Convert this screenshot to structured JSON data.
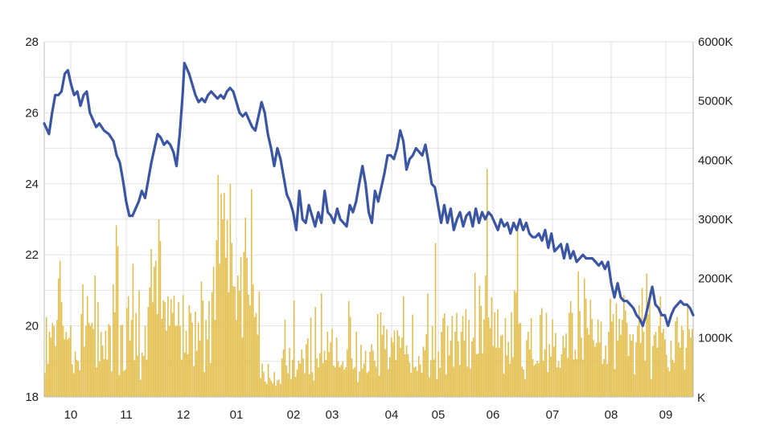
{
  "chart_data": {
    "type": "line",
    "combo": "price line with volume bars",
    "grid": true,
    "colors": {
      "price_line": "#3a55a4",
      "volume_bars": "#e3be4a",
      "grid": "#e3e3e3",
      "axis": "#bbbbbb"
    },
    "x_ticks": [
      "10",
      "11",
      "12",
      "01",
      "02",
      "03",
      "04",
      "05",
      "06",
      "07",
      "08",
      "09"
    ],
    "left_axis": {
      "ylim": [
        18,
        28
      ],
      "ticks": [
        "18",
        "20",
        "22",
        "24",
        "26",
        "28"
      ]
    },
    "right_axis": {
      "unit": "K",
      "ylim": [
        0,
        6000
      ],
      "ticks": [
        "6000K",
        "5000K",
        "4000K",
        "3000K",
        "2000K",
        "1000K"
      ]
    },
    "series": [
      {
        "kind": "line",
        "axis": "left",
        "points": [
          [
            0,
            25.7
          ],
          [
            3,
            25.4
          ],
          [
            5,
            26.0
          ],
          [
            7,
            26.5
          ],
          [
            9,
            26.5
          ],
          [
            11,
            26.6
          ],
          [
            13,
            27.1
          ],
          [
            15,
            27.2
          ],
          [
            17,
            26.8
          ],
          [
            19,
            26.5
          ],
          [
            21,
            26.6
          ],
          [
            23,
            26.2
          ],
          [
            25,
            26.5
          ],
          [
            27,
            26.6
          ],
          [
            29,
            26.0
          ],
          [
            31,
            25.8
          ],
          [
            33,
            25.6
          ],
          [
            35,
            25.7
          ],
          [
            38,
            25.5
          ],
          [
            41,
            25.4
          ],
          [
            44,
            25.2
          ],
          [
            46,
            24.8
          ],
          [
            48,
            24.6
          ],
          [
            50,
            24.1
          ],
          [
            52,
            23.5
          ],
          [
            54,
            23.1
          ],
          [
            56,
            23.1
          ],
          [
            58,
            23.3
          ],
          [
            60,
            23.5
          ],
          [
            62,
            23.8
          ],
          [
            64,
            23.6
          ],
          [
            66,
            24.1
          ],
          [
            68,
            24.6
          ],
          [
            70,
            25.0
          ],
          [
            72,
            25.4
          ],
          [
            74,
            25.3
          ],
          [
            76,
            25.1
          ],
          [
            78,
            25.2
          ],
          [
            80,
            25.1
          ],
          [
            82,
            24.9
          ],
          [
            84,
            24.5
          ],
          [
            86,
            25.4
          ],
          [
            88,
            26.6
          ],
          [
            89,
            27.4
          ],
          [
            90,
            27.3
          ],
          [
            92,
            27.1
          ],
          [
            94,
            26.8
          ],
          [
            96,
            26.5
          ],
          [
            98,
            26.3
          ],
          [
            100,
            26.4
          ],
          [
            102,
            26.3
          ],
          [
            104,
            26.5
          ],
          [
            106,
            26.6
          ],
          [
            108,
            26.5
          ],
          [
            110,
            26.4
          ],
          [
            112,
            26.5
          ],
          [
            114,
            26.4
          ],
          [
            116,
            26.6
          ],
          [
            118,
            26.7
          ],
          [
            120,
            26.6
          ],
          [
            122,
            26.3
          ],
          [
            124,
            26.0
          ],
          [
            126,
            25.9
          ],
          [
            128,
            26.0
          ],
          [
            130,
            25.8
          ],
          [
            132,
            25.6
          ],
          [
            134,
            25.5
          ],
          [
            136,
            25.9
          ],
          [
            138,
            26.3
          ],
          [
            140,
            26.0
          ],
          [
            142,
            25.4
          ],
          [
            144,
            25.0
          ],
          [
            146,
            24.5
          ],
          [
            148,
            25.0
          ],
          [
            150,
            24.7
          ],
          [
            152,
            24.2
          ],
          [
            154,
            23.7
          ],
          [
            156,
            23.5
          ],
          [
            158,
            23.2
          ],
          [
            160,
            22.7
          ],
          [
            162,
            23.8
          ],
          [
            164,
            23.0
          ],
          [
            166,
            22.9
          ],
          [
            168,
            23.4
          ],
          [
            170,
            23.1
          ],
          [
            172,
            22.8
          ],
          [
            174,
            23.2
          ],
          [
            176,
            22.9
          ],
          [
            178,
            23.8
          ],
          [
            180,
            23.2
          ],
          [
            182,
            23.1
          ],
          [
            184,
            22.9
          ],
          [
            186,
            23.3
          ],
          [
            188,
            23.0
          ],
          [
            190,
            22.9
          ],
          [
            192,
            22.8
          ],
          [
            194,
            23.4
          ],
          [
            196,
            23.2
          ],
          [
            198,
            23.5
          ],
          [
            200,
            24.0
          ],
          [
            202,
            24.5
          ],
          [
            204,
            24.0
          ],
          [
            206,
            23.2
          ],
          [
            208,
            22.9
          ],
          [
            210,
            23.8
          ],
          [
            212,
            23.5
          ],
          [
            214,
            23.9
          ],
          [
            216,
            24.3
          ],
          [
            218,
            24.8
          ],
          [
            220,
            24.8
          ],
          [
            222,
            24.7
          ],
          [
            224,
            25.0
          ],
          [
            226,
            25.5
          ],
          [
            228,
            25.2
          ],
          [
            230,
            24.4
          ],
          [
            232,
            24.7
          ],
          [
            234,
            24.8
          ],
          [
            236,
            25.0
          ],
          [
            238,
            24.9
          ],
          [
            240,
            24.8
          ],
          [
            242,
            25.1
          ],
          [
            244,
            24.6
          ],
          [
            246,
            24.0
          ],
          [
            248,
            23.9
          ],
          [
            250,
            23.4
          ],
          [
            252,
            22.9
          ],
          [
            254,
            23.4
          ],
          [
            256,
            22.9
          ],
          [
            258,
            23.3
          ],
          [
            260,
            22.7
          ],
          [
            262,
            23.0
          ],
          [
            264,
            23.2
          ],
          [
            266,
            22.8
          ],
          [
            268,
            23.1
          ],
          [
            270,
            23.2
          ],
          [
            272,
            22.8
          ],
          [
            274,
            23.3
          ],
          [
            276,
            22.9
          ],
          [
            278,
            23.2
          ],
          [
            280,
            23.0
          ],
          [
            282,
            23.2
          ],
          [
            284,
            23.1
          ],
          [
            286,
            22.9
          ],
          [
            288,
            22.7
          ],
          [
            290,
            23.0
          ],
          [
            292,
            22.8
          ],
          [
            294,
            22.9
          ],
          [
            296,
            22.6
          ],
          [
            298,
            22.9
          ],
          [
            300,
            22.7
          ],
          [
            302,
            23.0
          ],
          [
            304,
            22.7
          ],
          [
            306,
            22.9
          ],
          [
            308,
            22.6
          ],
          [
            310,
            22.5
          ],
          [
            312,
            22.5
          ],
          [
            314,
            22.6
          ],
          [
            316,
            22.4
          ],
          [
            318,
            22.7
          ],
          [
            320,
            22.2
          ],
          [
            322,
            22.6
          ],
          [
            324,
            22.1
          ],
          [
            326,
            22.2
          ],
          [
            328,
            22.3
          ],
          [
            330,
            21.9
          ],
          [
            332,
            22.3
          ],
          [
            334,
            21.9
          ],
          [
            336,
            22.1
          ],
          [
            338,
            21.8
          ],
          [
            340,
            21.9
          ],
          [
            342,
            22.0
          ],
          [
            344,
            21.9
          ],
          [
            346,
            21.9
          ],
          [
            348,
            21.9
          ],
          [
            350,
            21.8
          ],
          [
            352,
            21.7
          ],
          [
            354,
            21.8
          ],
          [
            356,
            21.6
          ],
          [
            358,
            21.8
          ],
          [
            360,
            21.2
          ],
          [
            362,
            20.8
          ],
          [
            364,
            21.2
          ],
          [
            366,
            20.8
          ],
          [
            368,
            20.7
          ],
          [
            370,
            20.7
          ],
          [
            372,
            20.6
          ],
          [
            374,
            20.5
          ],
          [
            376,
            20.3
          ],
          [
            378,
            20.2
          ],
          [
            380,
            20.0
          ],
          [
            382,
            20.3
          ],
          [
            384,
            20.7
          ],
          [
            386,
            21.1
          ],
          [
            388,
            20.6
          ],
          [
            390,
            20.5
          ],
          [
            392,
            20.3
          ],
          [
            394,
            20.3
          ],
          [
            396,
            20.0
          ],
          [
            398,
            20.3
          ],
          [
            400,
            20.5
          ],
          [
            402,
            20.6
          ],
          [
            404,
            20.7
          ],
          [
            406,
            20.6
          ],
          [
            408,
            20.6
          ],
          [
            410,
            20.5
          ],
          [
            412,
            20.3
          ]
        ]
      },
      {
        "kind": "bar",
        "axis": "right",
        "values": [
          400,
          1350,
          560,
          1100,
          1000,
          1250,
          1200,
          860,
          1300,
          2000,
          2300,
          1600,
          1200,
          970,
          1100,
          970,
          1000,
          1200,
          550,
          400,
          770,
          630,
          600,
          450,
          1400,
          1900,
          850,
          1200,
          1700,
          1250,
          1200,
          1250,
          1150,
          2050,
          500,
          1600,
          600,
          1100,
          870,
          640,
          1120,
          630,
          1230,
          1200,
          430,
          1900,
          1430,
          2900,
          2550,
          370,
          1210,
          1220,
          440,
          460,
          1500,
          1700,
          950,
          1300,
          2250,
          620,
          1420,
          700,
          1800,
          290,
          750,
          690,
          1200,
          630,
          1520,
          1850,
          2500,
          1600,
          2200,
          2300,
          1400,
          3000,
          2630,
          1320,
          1630,
          1600,
          1120,
          1700,
          1200,
          1650,
          1420,
          1710,
          1190,
          1210,
          1600,
          1200,
          630,
          1720,
          750,
          1120,
          720,
          1550,
          1420,
          1260,
          520,
          1440,
          780,
          1250,
          950,
          1950,
          1630,
          420,
          1300,
          970,
          1620,
          570,
          1770,
          2200,
          1300,
          2650,
          3750,
          2250,
          3430,
          3000,
          3450,
          2350,
          2990,
          1770,
          3600,
          2600,
          1870,
          1860,
          1300,
          2050,
          1790,
          2360,
          1000,
          2450,
          3030,
          2350,
          1730,
          1550,
          3510,
          1900,
          1350,
          1420,
          1050,
          1780,
          320,
          560,
          420,
          260,
          220,
          560,
          320,
          270,
          230,
          420,
          190,
          280,
          290,
          220,
          650,
          800,
          1300,
          530,
          400,
          830,
          300,
          630,
          1630,
          340,
          460,
          610,
          560,
          800,
          650,
          400,
          890,
          990,
          380,
          1340,
          420,
          280,
          1520,
          650,
          500,
          740,
          1750,
          570,
          780,
          620,
          1100,
          760,
          920,
          1150,
          530,
          500,
          1000,
          600,
          500,
          540,
          600,
          460,
          500,
          800,
          1620,
          1350,
          650,
          470,
          500,
          1100,
          250,
          430,
          880,
          480,
          560,
          780,
          400,
          430,
          760,
          890,
          780,
          610,
          510,
          1400,
          360,
          1430,
          1050,
          1210,
          810,
          1140,
          470,
          670,
          1010,
          920,
          1120,
          620,
          1130,
          1030,
          830,
          1000,
          1700,
          720,
          870,
          720,
          580,
          410,
          1390,
          500,
          510,
          440,
          690,
          550,
          410,
          850,
          790,
          1060,
          1750,
          330,
          620,
          1200,
          630,
          2600,
          300,
          770,
          490,
          1100,
          1330,
          1410,
          380,
          1200,
          700,
          950,
          1370,
          510,
          1100,
          1420,
          940,
          540,
          1100,
          1370,
          950,
          1480,
          510,
          1300,
          480,
          940,
          1000,
          2100,
          720,
          730,
          1880,
          1540,
          740,
          1310,
          2050,
          3850,
          1340,
          1160,
          1680,
          860,
          1430,
          830,
          1480,
          830,
          1030,
          1050,
          390,
          1330,
          700,
          930,
          560,
          1430,
          670,
          1800,
          1760,
          2850,
          1240,
          1250,
          510,
          460,
          300,
          960,
          1100,
          800,
          1330,
          640,
          530,
          560,
          610,
          570,
          1390,
          1500,
          610,
          800,
          1420,
          420,
          890,
          680,
          1310,
          850,
          1080,
          500,
          600,
          490,
          720,
          1030,
          830,
          1070,
          660,
          1420,
          1620,
          1420,
          630,
          800,
          640,
          2120,
          1450,
          1000,
          630,
          2000,
          1660,
          1160,
          1050,
          1640,
          1320,
          960,
          850,
          910,
          1310,
          920,
          1270,
          560,
          640,
          870,
          560,
          1100,
          1660,
          1270,
          1400,
          470,
          1580,
          950,
          1320,
          1050,
          1300,
          1720,
          1460,
          1250,
          690,
          1060,
          950,
          1060,
          380,
          920,
          1200,
          1550,
          910,
          1840,
          1100,
          610,
          2080,
          1400,
          1770,
          300,
          860,
          1050,
          1100,
          830,
          1200,
          1700,
          1080,
          1150,
          970,
          710,
          500,
          430,
          950,
          630,
          580,
          1280,
          1350,
          920,
          830,
          1200,
          1130,
          460,
          830,
          1570,
          1140,
          1000,
          1150
        ]
      }
    ]
  }
}
